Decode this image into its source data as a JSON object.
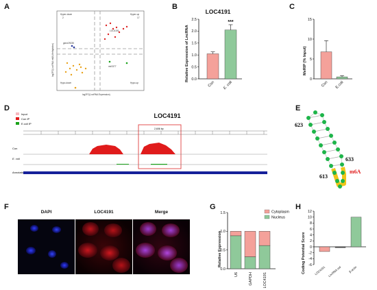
{
  "panels": {
    "A": "A",
    "B": "B",
    "C": "C",
    "D": "D",
    "E": "E",
    "F": "F",
    "G": "G",
    "H": "H"
  },
  "panelA": {
    "quadrants": {
      "tl": "Hyper-down",
      "tl_n": "2",
      "tr": "Hyper-up",
      "tr_n": "17",
      "bl": "Hypo-down",
      "bl_n": "",
      "br": "Hypo-up",
      "br_n": ""
    },
    "ylabel": "log2FC(LncRNA m6A-Methylation)",
    "xlabel": "log2FC(LncRNA Expression)",
    "labels": {
      "up": "LOC4191",
      "mid_left": "gene29235",
      "mid_right": "mir3377"
    }
  },
  "panelB": {
    "chart_data": {
      "type": "bar",
      "title": "LOC4191",
      "categories": [
        "Con",
        "E. coli"
      ],
      "values": [
        1.05,
        2.05
      ],
      "errors": [
        0.08,
        0.22
      ],
      "colors": [
        "#f4a19a",
        "#8fc99a"
      ],
      "ylabel": "Relative Expression of LncRNA",
      "ylim": [
        0,
        2.5
      ],
      "yticks": [
        "0.0",
        "0.5",
        "1.0",
        "1.5",
        "2.0",
        "2.5"
      ],
      "significance": "***"
    }
  },
  "panelC": {
    "chart_data": {
      "type": "bar",
      "categories": [
        "Con",
        "E.coli"
      ],
      "values": [
        6.8,
        0.5
      ],
      "errors": [
        2.8,
        0.3
      ],
      "colors": [
        "#f4a19a",
        "#8fc99a"
      ],
      "ylabel": "MeRIP (% Input)",
      "ylim": [
        0,
        15
      ],
      "yticks": [
        "0",
        "5",
        "10",
        "15"
      ]
    }
  },
  "panelD": {
    "title": "LOC4191",
    "legend": [
      {
        "label": "Input",
        "color": "#f7b8c0"
      },
      {
        "label": "Con IP",
        "color": "#e01b1b"
      },
      {
        "label": "E.coli IP",
        "color": "#1aa31a"
      }
    ],
    "scale": "2,606 bp",
    "tracks": {
      "con": "Con",
      "ecoli": "E. coli",
      "annotation": "Annotation"
    }
  },
  "panelE": {
    "labels": {
      "n623": "623",
      "n633": "633",
      "n613": "613",
      "m6a": "m6A"
    }
  },
  "panelF": {
    "titles": [
      "DAPI",
      "LOC4191",
      "Merge"
    ]
  },
  "panelG": {
    "chart_data": {
      "type": "bar",
      "categories": [
        "U6",
        "GAPDH",
        "LOC4191"
      ],
      "series": [
        {
          "name": "Nucleus",
          "values": [
            0.88,
            0.32,
            0.62
          ],
          "color": "#8fc99a"
        },
        {
          "name": "Cytoplasm",
          "values": [
            0.12,
            0.68,
            0.38
          ],
          "color": "#f4a19a"
        }
      ],
      "ylabel": "Relative Expression",
      "ylim": [
        0,
        1.5
      ],
      "yticks": [
        "0.0",
        "0.5",
        "1.0",
        "1.5"
      ]
    }
  },
  "panelH": {
    "chart_data": {
      "type": "bar",
      "categories": [
        "LOC4191",
        "LncRNA std",
        "β-actin"
      ],
      "values": [
        -1.6,
        -0.3,
        10
      ],
      "colors": [
        "#f4a19a",
        "#444444",
        "#8fc99a"
      ],
      "ylabel": "Coding Potential Score",
      "ylim": [
        -6,
        12
      ],
      "yticks": [
        "-6",
        "-4",
        "-2",
        "0",
        "2",
        "4",
        "6",
        "8",
        "10",
        "12"
      ],
      "threshold": 0
    }
  }
}
